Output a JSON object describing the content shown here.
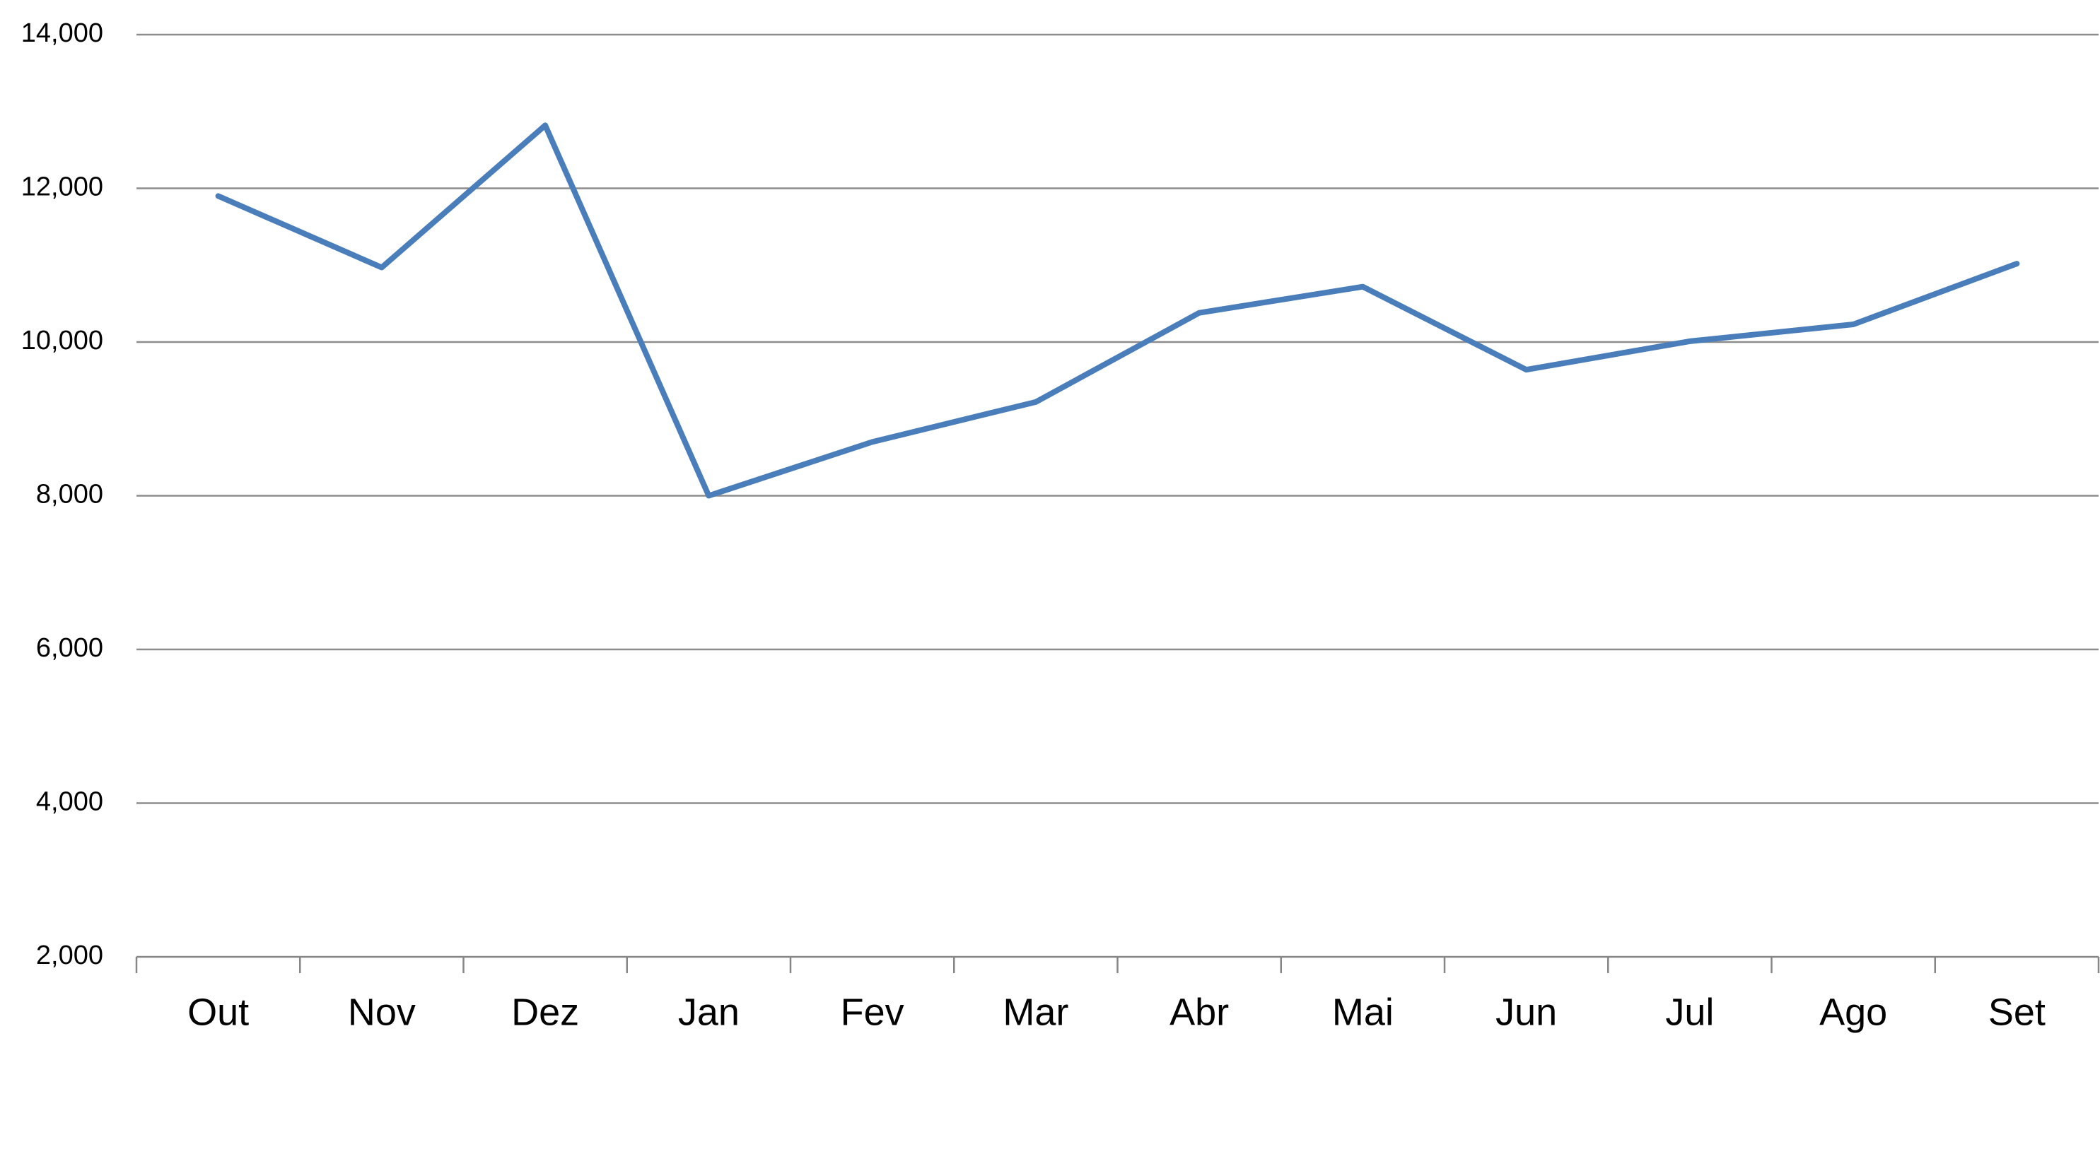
{
  "chart_data": {
    "type": "line",
    "categories": [
      "Out",
      "Nov",
      "Dez",
      "Jan",
      "Fev",
      "Mar",
      "Abr",
      "Mai",
      "Jun",
      "Jul",
      "Ago",
      "Set"
    ],
    "series": [
      {
        "color": "#4a7ebb",
        "values": [
          11900,
          10970,
          12820,
          8000,
          8700,
          9220,
          10380,
          10720,
          9640,
          10010,
          10230,
          11020
        ]
      }
    ],
    "ylim": [
      2000,
      14000
    ],
    "yticks": [
      {
        "value": 2000,
        "label": "2,000"
      },
      {
        "value": 4000,
        "label": "4,000"
      },
      {
        "value": 6000,
        "label": "6,000"
      },
      {
        "value": 8000,
        "label": "8,000"
      },
      {
        "value": 10000,
        "label": "10,000"
      },
      {
        "value": 12000,
        "label": "12,000"
      },
      {
        "value": 14000,
        "label": "14,000"
      }
    ],
    "grid": true
  }
}
